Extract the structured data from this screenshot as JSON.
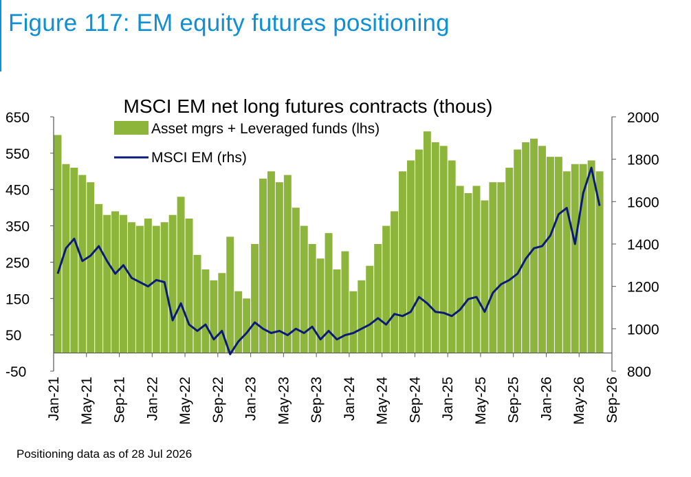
{
  "figure_title": "Figure 117: EM equity futures positioning",
  "footnote": "Positioning data as of 28 Jul 2026",
  "chart_data": {
    "type": "bar+line",
    "title": "MSCI EM net long futures contracts  (thous)",
    "x_axis": {
      "type": "date",
      "range": [
        "2021-01",
        "2026-09"
      ],
      "tick_labels": [
        "Jan-21",
        "May-21",
        "Sep-21",
        "Jan-22",
        "May-22",
        "Sep-22",
        "Jan-23",
        "May-23",
        "Sep-23",
        "Jan-24",
        "May-24",
        "Sep-24",
        "Jan-25",
        "May-25",
        "Sep-25",
        "Jan-26",
        "May-26",
        "Sep-26"
      ]
    },
    "y_left": {
      "range": [
        -50,
        650
      ],
      "ticks": [
        "650",
        "550",
        "450",
        "350",
        "250",
        "150",
        "50",
        "-50"
      ]
    },
    "y_right": {
      "range": [
        800,
        2000
      ],
      "ticks": [
        "2000",
        "1800",
        "1600",
        "1400",
        "1200",
        "1000",
        "800"
      ]
    },
    "legend": {
      "position": "top-center"
    },
    "colors": {
      "bars": "#8db53c",
      "line": "#0a1a78"
    },
    "series": [
      {
        "name": "Asset mgrs + Leveraged funds (lhs)",
        "type": "bar",
        "axis": "left",
        "x": [
          "2021-01",
          "2021-02",
          "2021-03",
          "2021-04",
          "2021-05",
          "2021-06",
          "2021-07",
          "2021-08",
          "2021-09",
          "2021-10",
          "2021-11",
          "2021-12",
          "2022-01",
          "2022-02",
          "2022-03",
          "2022-04",
          "2022-05",
          "2022-06",
          "2022-07",
          "2022-08",
          "2022-09",
          "2022-10",
          "2022-11",
          "2022-12",
          "2023-01",
          "2023-02",
          "2023-03",
          "2023-04",
          "2023-05",
          "2023-06",
          "2023-07",
          "2023-08",
          "2023-09",
          "2023-10",
          "2023-11",
          "2023-12",
          "2024-01",
          "2024-02",
          "2024-03",
          "2024-04",
          "2024-05",
          "2024-06",
          "2024-07",
          "2024-08",
          "2024-09",
          "2024-10",
          "2024-11",
          "2024-12",
          "2025-01",
          "2025-02",
          "2025-03",
          "2025-04",
          "2025-05",
          "2025-06",
          "2025-07",
          "2025-08",
          "2025-09",
          "2025-10",
          "2025-11",
          "2025-12",
          "2026-01",
          "2026-02",
          "2026-03",
          "2026-04",
          "2026-05",
          "2026-06",
          "2026-07"
        ],
        "values": [
          600,
          520,
          510,
          490,
          470,
          410,
          380,
          390,
          380,
          360,
          350,
          370,
          350,
          360,
          380,
          430,
          370,
          270,
          230,
          200,
          220,
          320,
          170,
          150,
          300,
          480,
          500,
          470,
          490,
          400,
          350,
          300,
          260,
          330,
          230,
          280,
          170,
          200,
          240,
          300,
          350,
          390,
          500,
          530,
          560,
          610,
          580,
          570,
          530,
          460,
          440,
          460,
          420,
          470,
          470,
          510,
          560,
          580,
          590,
          570,
          540,
          540,
          500,
          520,
          520,
          530,
          500
        ]
      },
      {
        "name": "MSCI EM (rhs)",
        "type": "line",
        "axis": "right",
        "x": [
          "2021-01",
          "2021-02",
          "2021-03",
          "2021-04",
          "2021-05",
          "2021-06",
          "2021-07",
          "2021-08",
          "2021-09",
          "2021-10",
          "2021-11",
          "2021-12",
          "2022-01",
          "2022-02",
          "2022-03",
          "2022-04",
          "2022-05",
          "2022-06",
          "2022-07",
          "2022-08",
          "2022-09",
          "2022-10",
          "2022-11",
          "2022-12",
          "2023-01",
          "2023-02",
          "2023-03",
          "2023-04",
          "2023-05",
          "2023-06",
          "2023-07",
          "2023-08",
          "2023-09",
          "2023-10",
          "2023-11",
          "2023-12",
          "2024-01",
          "2024-02",
          "2024-03",
          "2024-04",
          "2024-05",
          "2024-06",
          "2024-07",
          "2024-08",
          "2024-09",
          "2024-10",
          "2024-11",
          "2024-12",
          "2025-01",
          "2025-02",
          "2025-03",
          "2025-04",
          "2025-05",
          "2025-06",
          "2025-07",
          "2025-08",
          "2025-09",
          "2025-10",
          "2025-11",
          "2025-12",
          "2026-01",
          "2026-02",
          "2026-03",
          "2026-04",
          "2026-05",
          "2026-06",
          "2026-07"
        ],
        "values": [
          1260,
          1380,
          1425,
          1320,
          1345,
          1390,
          1320,
          1260,
          1300,
          1240,
          1220,
          1200,
          1230,
          1220,
          1040,
          1120,
          1020,
          990,
          1020,
          950,
          990,
          880,
          940,
          980,
          1030,
          1000,
          980,
          990,
          970,
          1000,
          980,
          1010,
          950,
          990,
          950,
          970,
          980,
          1000,
          1020,
          1050,
          1020,
          1070,
          1060,
          1080,
          1150,
          1120,
          1080,
          1075,
          1060,
          1090,
          1140,
          1150,
          1080,
          1170,
          1210,
          1230,
          1260,
          1330,
          1380,
          1390,
          1440,
          1540,
          1570,
          1400,
          1640,
          1760,
          1580
        ]
      }
    ]
  }
}
